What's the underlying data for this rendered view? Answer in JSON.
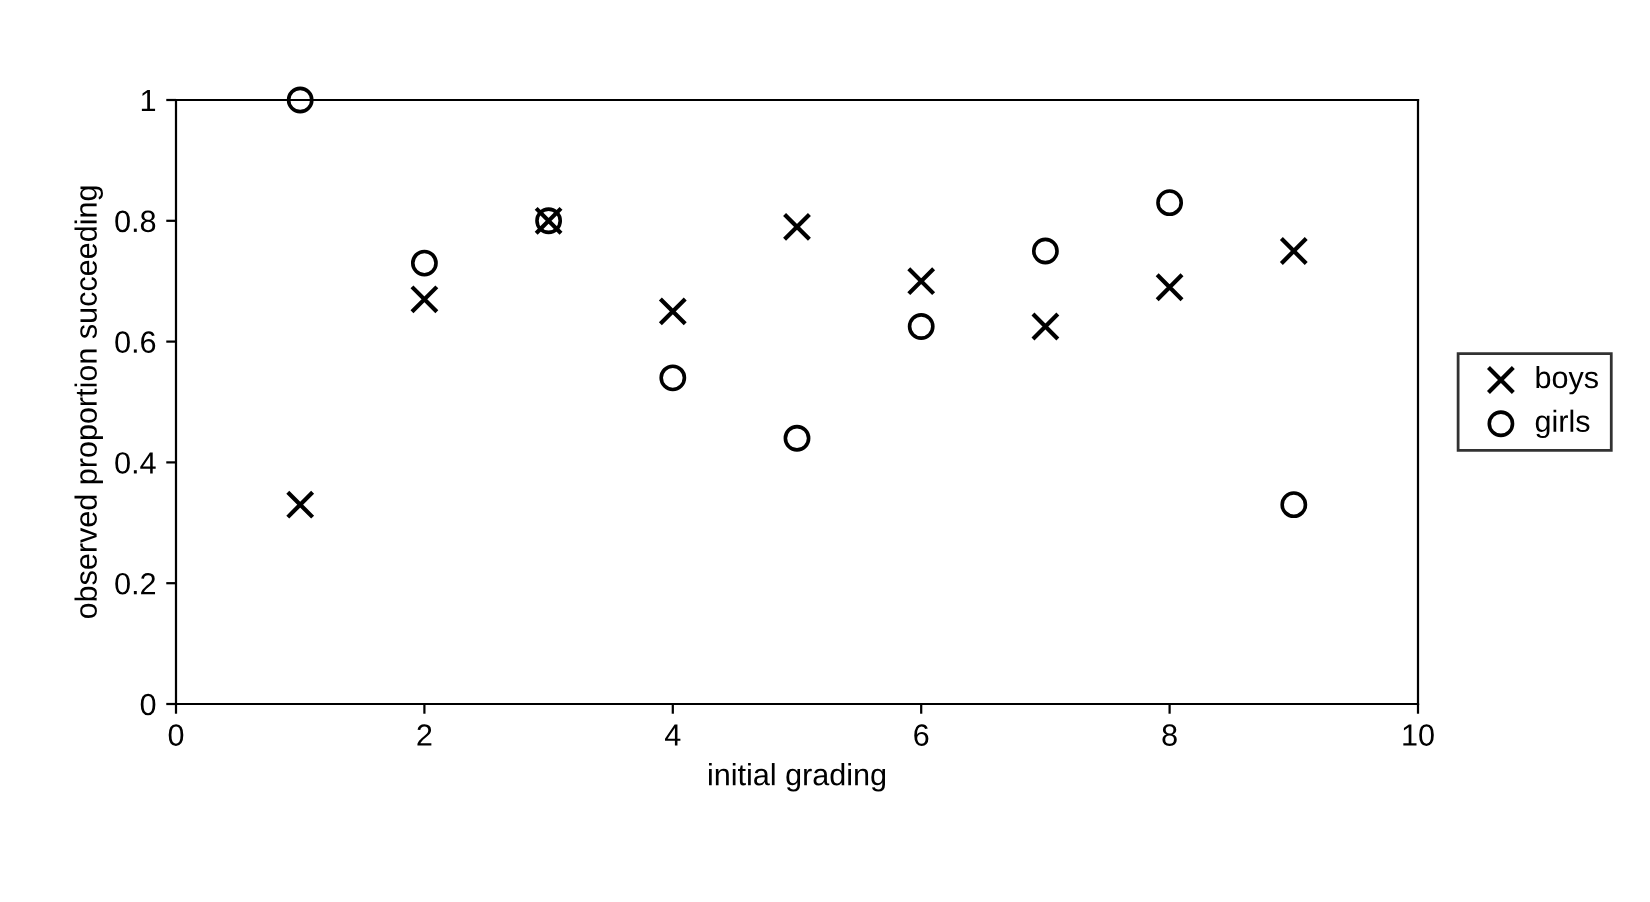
{
  "chart_data": {
    "type": "scatter",
    "xlabel": "initial grading",
    "ylabel": "observed proportion succeeding",
    "xlim": [
      0,
      10
    ],
    "xticks": [
      0,
      2,
      4,
      6,
      8,
      10
    ],
    "ylim": [
      0,
      1
    ],
    "yticks": [
      0,
      0.2,
      0.4,
      0.6,
      0.8,
      1
    ],
    "x": [
      1,
      2,
      3,
      4,
      5,
      6,
      7,
      8,
      9
    ],
    "series": [
      {
        "name": "boys",
        "color": "#000000",
        "marker": "cross",
        "values": [
          0.33,
          0.67,
          0.8,
          0.65,
          0.79,
          0.7,
          0.625,
          0.69,
          0.75
        ]
      },
      {
        "name": "girls",
        "color": "#000000",
        "marker": "circle",
        "values": [
          1.0,
          0.73,
          0.8,
          0.54,
          0.44,
          0.625,
          0.75,
          0.83,
          0.33
        ]
      }
    ],
    "grid": false,
    "legend": "right"
  }
}
